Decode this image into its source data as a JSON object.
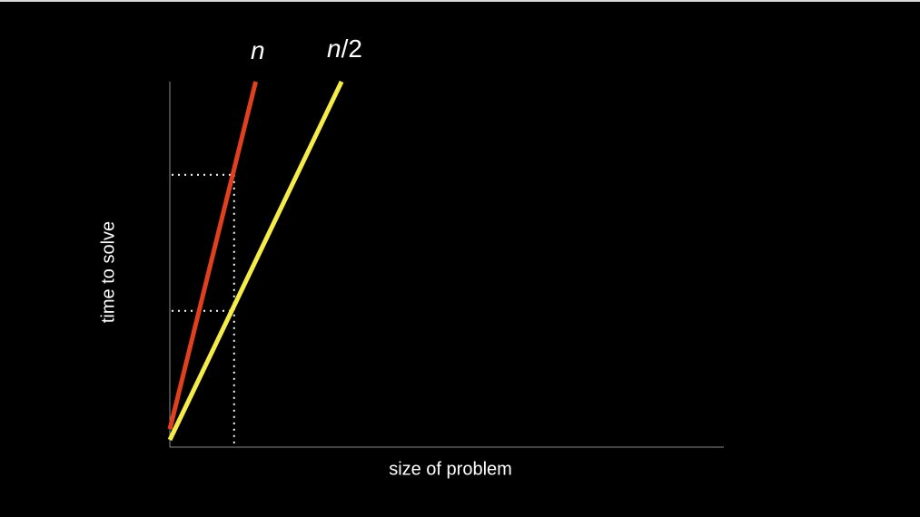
{
  "chart_data": {
    "type": "line",
    "title": "",
    "xlabel": "size of problem",
    "ylabel": "time to solve",
    "xlim": [
      0,
      10
    ],
    "ylim": [
      0,
      10
    ],
    "grid": false,
    "legend": "none",
    "series": [
      {
        "name": "n",
        "color": "#e0401f",
        "x": [
          0,
          1.55
        ],
        "y": [
          0.3,
          10
        ]
      },
      {
        "name": "n/2",
        "color": "#f5eb4a",
        "x": [
          0,
          3.1
        ],
        "y": [
          0,
          10
        ]
      }
    ],
    "guides": {
      "x": 1.16,
      "y_values": [
        7.4,
        3.6
      ]
    }
  },
  "labels": {
    "series_n_italic": "n",
    "series_n2_italic": "n",
    "series_n2_suffix": "/2"
  }
}
